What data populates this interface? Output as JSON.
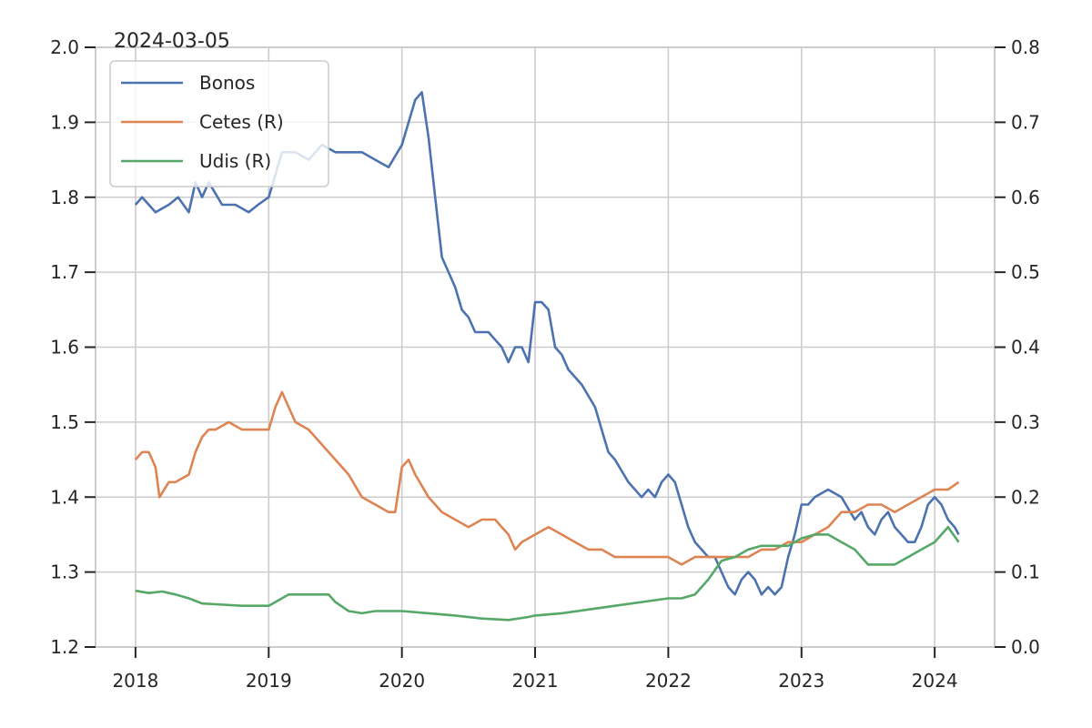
{
  "chart_data": {
    "type": "line",
    "title": "2024-03-05",
    "xlabel": "",
    "ylabel": "",
    "ylabel_right": "",
    "xlim": [
      2017.7,
      2024.45
    ],
    "ylim": [
      1.2,
      2.0
    ],
    "ylim_right": [
      0.0,
      0.8
    ],
    "x_ticks": [
      2018,
      2019,
      2020,
      2021,
      2022,
      2023,
      2024
    ],
    "x_tick_labels": [
      "2018",
      "2019",
      "2020",
      "2021",
      "2022",
      "2023",
      "2024"
    ],
    "y_ticks": [
      1.2,
      1.3,
      1.4,
      1.5,
      1.6,
      1.7,
      1.8,
      1.9,
      2.0
    ],
    "y_tick_labels": [
      "1.2",
      "1.3",
      "1.4",
      "1.5",
      "1.6",
      "1.7",
      "1.8",
      "1.9",
      "2.0"
    ],
    "y_ticks_right": [
      0.0,
      0.1,
      0.2,
      0.3,
      0.4,
      0.5,
      0.6,
      0.7,
      0.8
    ],
    "y_tick_labels_right": [
      "0.0",
      "0.1",
      "0.2",
      "0.3",
      "0.4",
      "0.5",
      "0.6",
      "0.7",
      "0.8"
    ],
    "grid": true,
    "legend_position": "top-left",
    "series": [
      {
        "name": "Bonos",
        "axis": "left",
        "color": "#4c72b0",
        "x": [
          2018.0,
          2018.05,
          2018.15,
          2018.25,
          2018.32,
          2018.4,
          2018.45,
          2018.5,
          2018.55,
          2018.65,
          2018.75,
          2018.85,
          2018.92,
          2019.0,
          2019.1,
          2019.2,
          2019.3,
          2019.4,
          2019.5,
          2019.6,
          2019.7,
          2019.8,
          2019.9,
          2020.0,
          2020.05,
          2020.1,
          2020.15,
          2020.2,
          2020.25,
          2020.3,
          2020.4,
          2020.45,
          2020.5,
          2020.55,
          2020.65,
          2020.7,
          2020.75,
          2020.8,
          2020.85,
          2020.9,
          2020.95,
          2021.0,
          2021.05,
          2021.1,
          2021.15,
          2021.2,
          2021.25,
          2021.3,
          2021.35,
          2021.45,
          2021.5,
          2021.55,
          2021.6,
          2021.7,
          2021.75,
          2021.8,
          2021.85,
          2021.9,
          2021.95,
          2022.0,
          2022.05,
          2022.1,
          2022.15,
          2022.2,
          2022.25,
          2022.3,
          2022.35,
          2022.4,
          2022.45,
          2022.5,
          2022.55,
          2022.6,
          2022.65,
          2022.7,
          2022.75,
          2022.8,
          2022.85,
          2022.9,
          2022.95,
          2023.0,
          2023.05,
          2023.1,
          2023.2,
          2023.3,
          2023.4,
          2023.45,
          2023.5,
          2023.55,
          2023.6,
          2023.65,
          2023.7,
          2023.75,
          2023.8,
          2023.85,
          2023.9,
          2023.95,
          2024.0,
          2024.05,
          2024.1,
          2024.15,
          2024.18
        ],
        "values": [
          1.79,
          1.8,
          1.78,
          1.79,
          1.8,
          1.78,
          1.82,
          1.8,
          1.82,
          1.79,
          1.79,
          1.78,
          1.79,
          1.8,
          1.86,
          1.86,
          1.85,
          1.87,
          1.86,
          1.86,
          1.86,
          1.85,
          1.84,
          1.87,
          1.9,
          1.93,
          1.94,
          1.88,
          1.8,
          1.72,
          1.68,
          1.65,
          1.64,
          1.62,
          1.62,
          1.61,
          1.6,
          1.58,
          1.6,
          1.6,
          1.58,
          1.66,
          1.66,
          1.65,
          1.6,
          1.59,
          1.57,
          1.56,
          1.55,
          1.52,
          1.49,
          1.46,
          1.45,
          1.42,
          1.41,
          1.4,
          1.41,
          1.4,
          1.42,
          1.43,
          1.42,
          1.39,
          1.36,
          1.34,
          1.33,
          1.32,
          1.32,
          1.3,
          1.28,
          1.27,
          1.29,
          1.3,
          1.29,
          1.27,
          1.28,
          1.27,
          1.28,
          1.32,
          1.35,
          1.39,
          1.39,
          1.4,
          1.41,
          1.4,
          1.37,
          1.38,
          1.36,
          1.35,
          1.37,
          1.38,
          1.36,
          1.35,
          1.34,
          1.34,
          1.36,
          1.39,
          1.4,
          1.39,
          1.37,
          1.36,
          1.35
        ]
      },
      {
        "name": "Cetes (R)",
        "axis": "right",
        "color": "#dd8452",
        "x": [
          2018.0,
          2018.05,
          2018.1,
          2018.15,
          2018.18,
          2018.25,
          2018.3,
          2018.4,
          2018.45,
          2018.5,
          2018.55,
          2018.6,
          2018.7,
          2018.8,
          2018.9,
          2019.0,
          2019.05,
          2019.1,
          2019.15,
          2019.2,
          2019.3,
          2019.4,
          2019.5,
          2019.6,
          2019.7,
          2019.8,
          2019.9,
          2019.95,
          2020.0,
          2020.05,
          2020.1,
          2020.2,
          2020.3,
          2020.4,
          2020.5,
          2020.6,
          2020.7,
          2020.75,
          2020.8,
          2020.85,
          2020.9,
          2021.0,
          2021.1,
          2021.2,
          2021.3,
          2021.4,
          2021.5,
          2021.6,
          2021.7,
          2021.8,
          2021.9,
          2022.0,
          2022.1,
          2022.2,
          2022.3,
          2022.4,
          2022.5,
          2022.6,
          2022.7,
          2022.8,
          2022.9,
          2023.0,
          2023.1,
          2023.2,
          2023.3,
          2023.4,
          2023.5,
          2023.6,
          2023.7,
          2023.8,
          2023.9,
          2024.0,
          2024.1,
          2024.18
        ],
        "values": [
          0.25,
          0.26,
          0.26,
          0.24,
          0.2,
          0.22,
          0.22,
          0.23,
          0.26,
          0.28,
          0.29,
          0.29,
          0.3,
          0.29,
          0.29,
          0.29,
          0.32,
          0.34,
          0.32,
          0.3,
          0.29,
          0.27,
          0.25,
          0.23,
          0.2,
          0.19,
          0.18,
          0.18,
          0.24,
          0.25,
          0.23,
          0.2,
          0.18,
          0.17,
          0.16,
          0.17,
          0.17,
          0.16,
          0.15,
          0.13,
          0.14,
          0.15,
          0.16,
          0.15,
          0.14,
          0.13,
          0.13,
          0.12,
          0.12,
          0.12,
          0.12,
          0.12,
          0.11,
          0.12,
          0.12,
          0.12,
          0.12,
          0.12,
          0.13,
          0.13,
          0.14,
          0.14,
          0.15,
          0.16,
          0.18,
          0.18,
          0.19,
          0.19,
          0.18,
          0.19,
          0.2,
          0.21,
          0.21,
          0.22
        ]
      },
      {
        "name": "Udis (R)",
        "axis": "right",
        "color": "#55a868",
        "x": [
          2018.0,
          2018.1,
          2018.2,
          2018.3,
          2018.4,
          2018.5,
          2018.6,
          2018.8,
          2019.0,
          2019.1,
          2019.15,
          2019.3,
          2019.45,
          2019.5,
          2019.6,
          2019.7,
          2019.8,
          2020.0,
          2020.2,
          2020.4,
          2020.6,
          2020.8,
          2020.95,
          2021.0,
          2021.2,
          2021.4,
          2021.6,
          2021.8,
          2022.0,
          2022.1,
          2022.2,
          2022.3,
          2022.4,
          2022.5,
          2022.6,
          2022.7,
          2022.8,
          2022.9,
          2023.0,
          2023.1,
          2023.2,
          2023.3,
          2023.4,
          2023.5,
          2023.6,
          2023.7,
          2023.8,
          2023.9,
          2024.0,
          2024.1,
          2024.18
        ],
        "values": [
          0.075,
          0.072,
          0.074,
          0.07,
          0.065,
          0.058,
          0.057,
          0.055,
          0.055,
          0.065,
          0.07,
          0.07,
          0.07,
          0.06,
          0.048,
          0.045,
          0.048,
          0.048,
          0.045,
          0.042,
          0.038,
          0.036,
          0.04,
          0.042,
          0.045,
          0.05,
          0.055,
          0.06,
          0.065,
          0.065,
          0.07,
          0.09,
          0.115,
          0.12,
          0.13,
          0.135,
          0.135,
          0.135,
          0.145,
          0.15,
          0.15,
          0.14,
          0.13,
          0.11,
          0.11,
          0.11,
          0.12,
          0.13,
          0.14,
          0.16,
          0.14
        ]
      }
    ]
  }
}
